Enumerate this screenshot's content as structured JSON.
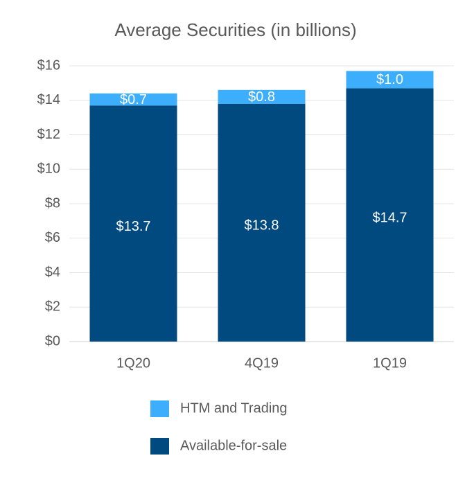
{
  "chart_data": {
    "type": "stacked-bar",
    "title": "Average Securities (in billions)",
    "categories": [
      "1Q20",
      "4Q19",
      "1Q19"
    ],
    "series": [
      {
        "name": "Available-for-sale",
        "color": "#004a80",
        "values": [
          13.7,
          13.8,
          14.7
        ],
        "value_labels": [
          "$13.7",
          "$13.8",
          "$14.7"
        ]
      },
      {
        "name": "HTM and Trading",
        "color": "#3daefc",
        "values": [
          0.7,
          0.8,
          1.0
        ],
        "value_labels": [
          "$0.7",
          "$0.8",
          "$1.0"
        ]
      }
    ],
    "ylim": [
      0,
      16
    ],
    "yticks": [
      {
        "value": 0,
        "label": "$0"
      },
      {
        "value": 2,
        "label": "$2"
      },
      {
        "value": 4,
        "label": "$4"
      },
      {
        "value": 6,
        "label": "$6"
      },
      {
        "value": 8,
        "label": "$8"
      },
      {
        "value": 10,
        "label": "$10"
      },
      {
        "value": 12,
        "label": "$12"
      },
      {
        "value": 14,
        "label": "$14"
      },
      {
        "value": 16,
        "label": "$16"
      }
    ],
    "grid": true
  }
}
